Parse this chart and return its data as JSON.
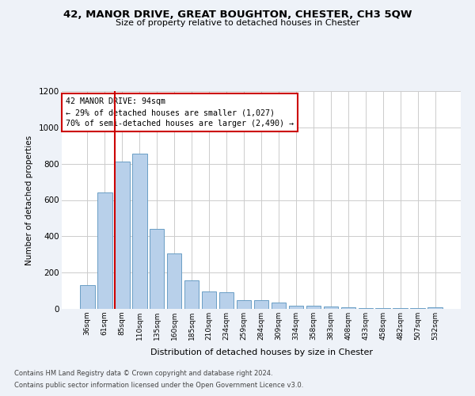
{
  "title": "42, MANOR DRIVE, GREAT BOUGHTON, CHESTER, CH3 5QW",
  "subtitle": "Size of property relative to detached houses in Chester",
  "xlabel": "Distribution of detached houses by size in Chester",
  "ylabel": "Number of detached properties",
  "categories": [
    "36sqm",
    "61sqm",
    "85sqm",
    "110sqm",
    "135sqm",
    "160sqm",
    "185sqm",
    "210sqm",
    "234sqm",
    "259sqm",
    "284sqm",
    "309sqm",
    "334sqm",
    "358sqm",
    "383sqm",
    "408sqm",
    "433sqm",
    "458sqm",
    "482sqm",
    "507sqm",
    "532sqm"
  ],
  "values": [
    130,
    640,
    810,
    855,
    440,
    305,
    158,
    95,
    90,
    50,
    50,
    35,
    18,
    18,
    15,
    10,
    5,
    5,
    3,
    3,
    10
  ],
  "bar_color": "#b8d0ea",
  "bar_edge_color": "#6a9ec5",
  "vline_color": "#cc0000",
  "annotation_text": "42 MANOR DRIVE: 94sqm\n← 29% of detached houses are smaller (1,027)\n70% of semi-detached houses are larger (2,490) →",
  "annotation_box_color": "#ffffff",
  "annotation_box_edge_color": "#cc0000",
  "ylim": [
    0,
    1200
  ],
  "yticks": [
    0,
    200,
    400,
    600,
    800,
    1000,
    1200
  ],
  "footer_line1": "Contains HM Land Registry data © Crown copyright and database right 2024.",
  "footer_line2": "Contains public sector information licensed under the Open Government Licence v3.0.",
  "bg_color": "#eef2f8",
  "plot_bg_color": "#ffffff",
  "grid_color": "#cccccc"
}
